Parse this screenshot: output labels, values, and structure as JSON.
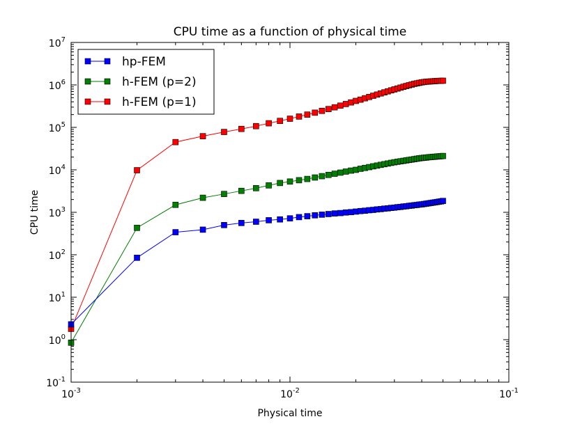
{
  "chart_data": {
    "type": "line",
    "title": "CPU time as a function of physical time",
    "xlabel": "Physical time",
    "ylabel": "CPU time",
    "xscale": "log",
    "yscale": "log",
    "xlim": [
      0.001,
      0.1
    ],
    "ylim": [
      0.1,
      10000000
    ],
    "grid": false,
    "legend_position": "top-left",
    "x_ticks": [
      {
        "base": "10",
        "exp": "-3",
        "value": 0.001
      },
      {
        "base": "10",
        "exp": "-2",
        "value": 0.01
      },
      {
        "base": "10",
        "exp": "-1",
        "value": 0.1
      }
    ],
    "y_ticks": [
      {
        "base": "10",
        "exp": "-1",
        "value": 0.1
      },
      {
        "base": "10",
        "exp": "0",
        "value": 1
      },
      {
        "base": "10",
        "exp": "1",
        "value": 10
      },
      {
        "base": "10",
        "exp": "2",
        "value": 100
      },
      {
        "base": "10",
        "exp": "3",
        "value": 1000
      },
      {
        "base": "10",
        "exp": "4",
        "value": 10000
      },
      {
        "base": "10",
        "exp": "5",
        "value": 100000
      },
      {
        "base": "10",
        "exp": "6",
        "value": 1000000
      },
      {
        "base": "10",
        "exp": "7",
        "value": 10000000
      }
    ],
    "x": [
      0.001,
      0.002,
      0.003,
      0.004,
      0.005,
      0.006,
      0.007,
      0.008,
      0.009,
      0.01,
      0.011,
      0.012,
      0.013,
      0.014,
      0.015,
      0.016,
      0.017,
      0.018,
      0.019,
      0.02,
      0.021,
      0.022,
      0.023,
      0.024,
      0.025,
      0.026,
      0.027,
      0.028,
      0.029,
      0.03,
      0.031,
      0.032,
      0.033,
      0.034,
      0.035,
      0.036,
      0.037,
      0.038,
      0.039,
      0.04,
      0.041,
      0.042,
      0.043,
      0.044,
      0.045,
      0.046,
      0.047,
      0.048,
      0.049,
      0.05
    ],
    "series": [
      {
        "name": "hp-FEM",
        "color": "#0000ff",
        "marker": "square",
        "values": [
          2.3,
          85,
          340,
          390,
          500,
          560,
          600,
          650,
          680,
          720,
          770,
          810,
          850,
          880,
          910,
          940,
          960,
          990,
          1010,
          1040,
          1070,
          1090,
          1120,
          1140,
          1170,
          1190,
          1220,
          1240,
          1270,
          1290,
          1320,
          1340,
          1370,
          1390,
          1420,
          1440,
          1470,
          1490,
          1520,
          1540,
          1570,
          1600,
          1630,
          1660,
          1690,
          1720,
          1750,
          1780,
          1810,
          1850
        ]
      },
      {
        "name": "h-FEM (p=2)",
        "color": "#007f00",
        "marker": "square",
        "values": [
          0.85,
          430,
          1500,
          2200,
          2700,
          3200,
          3700,
          4300,
          4900,
          5300,
          5700,
          6100,
          6600,
          7100,
          7600,
          8100,
          8600,
          9100,
          9600,
          10000,
          10600,
          11100,
          11600,
          12100,
          12600,
          13100,
          13600,
          14100,
          14600,
          15100,
          15500,
          15900,
          16300,
          16700,
          17100,
          17500,
          17900,
          18300,
          18700,
          19000,
          19300,
          19500,
          19800,
          20000,
          20200,
          20400,
          20600,
          20800,
          21000,
          21200
        ]
      },
      {
        "name": "h-FEM (p=1)",
        "color": "#ff0000",
        "marker": "square",
        "values": [
          1.8,
          9800,
          45000,
          62000,
          78000,
          92000,
          107000,
          125000,
          142000,
          160000,
          180000,
          200000,
          222000,
          245000,
          270000,
          297000,
          325000,
          355000,
          387000,
          420000,
          450000,
          485000,
          520000,
          556000,
          592000,
          630000,
          668000,
          706000,
          745000,
          784000,
          823000,
          863000,
          903000,
          943000,
          983000,
          1020000,
          1060000,
          1090000,
          1120000,
          1150000,
          1170000,
          1190000,
          1200000,
          1210000,
          1220000,
          1230000,
          1240000,
          1245000,
          1250000,
          1255000
        ]
      }
    ]
  }
}
